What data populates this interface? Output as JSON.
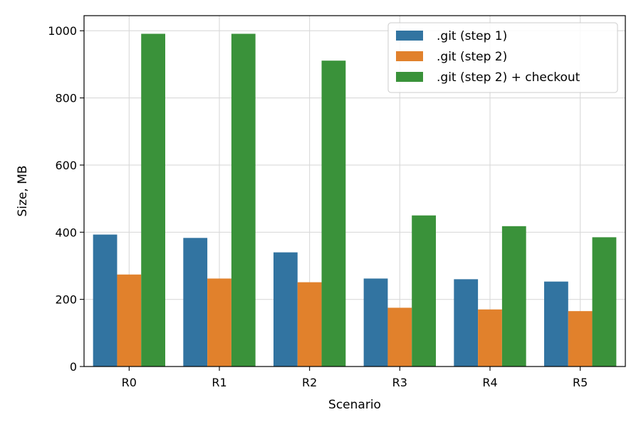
{
  "chart_data": {
    "type": "bar",
    "title": "",
    "xlabel": "Scenario",
    "ylabel": "Size, MB",
    "categories": [
      "R0",
      "R1",
      "R2",
      "R3",
      "R4",
      "R5"
    ],
    "ylim": [
      0,
      1045
    ],
    "yticks": [
      0,
      200,
      400,
      600,
      800,
      1000
    ],
    "grid": true,
    "legend_position": "top-right",
    "series": [
      {
        "name": ".git (step 1)",
        "color": "#3274a1",
        "values": [
          393,
          383,
          340,
          262,
          260,
          253
        ]
      },
      {
        "name": ".git (step 2)",
        "color": "#e1812c",
        "values": [
          274,
          262,
          251,
          175,
          170,
          165
        ]
      },
      {
        "name": ".git (step 2) + checkout",
        "color": "#3a923a",
        "values": [
          991,
          991,
          911,
          450,
          418,
          385
        ]
      }
    ]
  }
}
